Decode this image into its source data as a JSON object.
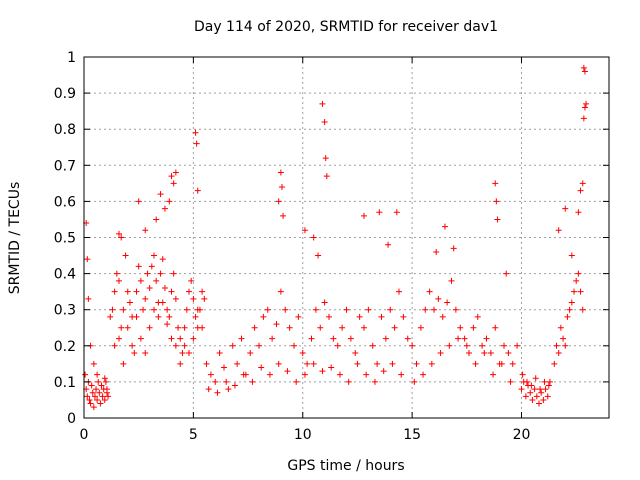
{
  "chart_data": {
    "type": "scatter",
    "title": "Day 114 of 2020, SRMTID for receiver dav1",
    "xlabel": "GPS time / hours",
    "ylabel": "SRMTID / TECUs",
    "xlim": [
      0,
      24
    ],
    "ylim": [
      0,
      1
    ],
    "xticks": [
      0,
      5,
      10,
      15,
      20
    ],
    "xtick_labels": [
      "0",
      "5",
      "10",
      "15",
      "20"
    ],
    "yticks": [
      0,
      0.1,
      0.2,
      0.3,
      0.4,
      0.5,
      0.6,
      0.7,
      0.8,
      0.9,
      1
    ],
    "ytick_labels": [
      "0",
      "0.1",
      "0.2",
      "0.3",
      "0.4",
      "0.5",
      "0.6",
      "0.7",
      "0.8",
      "0.9",
      "1"
    ],
    "grid": true,
    "marker": "+",
    "color": "#ff0000",
    "series": [
      {
        "name": "SRMTID",
        "x": [
          0.05,
          0.1,
          0.15,
          0.2,
          0.25,
          0.3,
          0.35,
          0.4,
          0.45,
          0.5,
          0.55,
          0.6,
          0.65,
          0.7,
          0.75,
          0.8,
          0.85,
          0.9,
          0.95,
          1.0,
          1.05,
          1.1,
          0.1,
          0.15,
          0.2,
          0.3,
          0.45,
          0.6,
          0.8,
          0.95,
          1.05,
          1.2,
          1.3,
          1.4,
          1.5,
          1.6,
          1.7,
          1.8,
          1.9,
          2.0,
          2.1,
          2.2,
          2.3,
          2.4,
          2.5,
          2.6,
          2.7,
          2.8,
          2.9,
          3.0,
          3.1,
          3.2,
          3.3,
          3.4,
          3.5,
          3.6,
          3.7,
          3.8,
          3.9,
          4.0,
          4.1,
          4.2,
          4.3,
          4.4,
          4.5,
          4.6,
          4.7,
          4.8,
          4.9,
          5.0,
          5.1,
          5.2,
          5.3,
          5.4,
          5.5,
          1.4,
          1.6,
          1.8,
          2.0,
          2.2,
          2.4,
          2.6,
          2.8,
          3.0,
          3.2,
          3.4,
          3.6,
          3.8,
          4.0,
          4.2,
          4.4,
          4.6,
          4.8,
          5.0,
          5.2,
          5.4,
          1.6,
          1.7,
          2.5,
          2.8,
          3.3,
          3.5,
          3.7,
          3.9,
          4.0,
          4.1,
          4.2,
          5.1,
          5.15,
          5.2,
          5.6,
          5.8,
          6.0,
          6.2,
          6.4,
          6.6,
          6.8,
          7.0,
          7.2,
          7.4,
          7.6,
          7.8,
          8.0,
          8.2,
          8.4,
          8.6,
          8.8,
          9.0,
          9.2,
          9.4,
          9.6,
          9.8,
          10.0,
          10.2,
          10.4,
          10.6,
          10.8,
          11.0,
          11.2,
          11.4,
          11.6,
          11.8,
          12.0,
          12.2,
          12.4,
          12.6,
          12.8,
          13.0,
          13.2,
          13.4,
          13.6,
          13.8,
          14.0,
          14.2,
          14.4,
          14.6,
          14.8,
          5.7,
          6.1,
          6.5,
          6.9,
          7.3,
          7.7,
          8.1,
          8.5,
          8.9,
          9.3,
          9.7,
          10.1,
          10.5,
          10.9,
          11.3,
          11.7,
          12.1,
          12.5,
          12.9,
          13.3,
          13.7,
          14.1,
          14.5,
          8.9,
          9.0,
          9.05,
          9.1,
          10.9,
          11.0,
          11.05,
          11.1,
          10.1,
          10.5,
          10.7,
          12.8,
          13.5,
          14.3,
          13.9,
          15.0,
          15.2,
          15.4,
          15.6,
          15.8,
          16.0,
          16.2,
          16.4,
          16.6,
          16.8,
          17.0,
          17.2,
          17.4,
          17.6,
          17.8,
          18.0,
          18.2,
          18.4,
          18.6,
          18.8,
          19.0,
          19.2,
          19.4,
          19.6,
          19.8,
          15.1,
          15.5,
          15.9,
          16.3,
          16.7,
          17.1,
          17.5,
          17.9,
          18.3,
          18.7,
          19.1,
          19.5,
          16.1,
          16.5,
          16.9,
          18.8,
          18.85,
          18.9,
          19.3,
          20.0,
          20.1,
          20.2,
          20.3,
          20.4,
          20.5,
          20.6,
          20.7,
          20.8,
          20.9,
          21.0,
          21.1,
          21.2,
          21.3,
          20.05,
          20.25,
          20.45,
          20.65,
          20.85,
          21.05,
          21.25,
          21.5,
          21.6,
          21.7,
          21.8,
          21.9,
          22.0,
          22.1,
          22.2,
          22.3,
          22.4,
          22.5,
          22.6,
          22.7,
          22.8,
          21.7,
          22.0,
          22.3,
          22.6,
          22.7,
          22.8,
          22.85,
          22.9,
          22.95,
          22.9,
          22.85
        ],
        "y": [
          0.12,
          0.08,
          0.06,
          0.1,
          0.05,
          0.04,
          0.09,
          0.07,
          0.03,
          0.06,
          0.08,
          0.05,
          0.1,
          0.07,
          0.04,
          0.09,
          0.06,
          0.08,
          0.05,
          0.1,
          0.07,
          0.06,
          0.54,
          0.44,
          0.33,
          0.2,
          0.15,
          0.12,
          0.09,
          0.11,
          0.08,
          0.28,
          0.3,
          0.35,
          0.4,
          0.38,
          0.25,
          0.3,
          0.45,
          0.35,
          0.32,
          0.28,
          0.18,
          0.35,
          0.42,
          0.38,
          0.3,
          0.33,
          0.4,
          0.36,
          0.42,
          0.45,
          0.38,
          0.32,
          0.4,
          0.44,
          0.36,
          0.3,
          0.28,
          0.35,
          0.4,
          0.33,
          0.25,
          0.22,
          0.18,
          0.2,
          0.3,
          0.35,
          0.38,
          0.33,
          0.28,
          0.25,
          0.3,
          0.35,
          0.33,
          0.2,
          0.22,
          0.15,
          0.25,
          0.2,
          0.28,
          0.22,
          0.18,
          0.25,
          0.3,
          0.28,
          0.32,
          0.26,
          0.22,
          0.2,
          0.15,
          0.25,
          0.18,
          0.22,
          0.3,
          0.25,
          0.51,
          0.5,
          0.6,
          0.52,
          0.55,
          0.62,
          0.58,
          0.6,
          0.67,
          0.65,
          0.68,
          0.79,
          0.76,
          0.63,
          0.15,
          0.12,
          0.1,
          0.18,
          0.14,
          0.08,
          0.2,
          0.15,
          0.22,
          0.12,
          0.18,
          0.25,
          0.2,
          0.28,
          0.3,
          0.22,
          0.26,
          0.35,
          0.3,
          0.25,
          0.2,
          0.28,
          0.18,
          0.15,
          0.22,
          0.3,
          0.25,
          0.32,
          0.28,
          0.22,
          0.2,
          0.25,
          0.3,
          0.22,
          0.18,
          0.28,
          0.25,
          0.3,
          0.2,
          0.15,
          0.28,
          0.22,
          0.3,
          0.25,
          0.35,
          0.28,
          0.22,
          0.08,
          0.07,
          0.1,
          0.09,
          0.12,
          0.1,
          0.14,
          0.12,
          0.15,
          0.13,
          0.1,
          0.12,
          0.15,
          0.13,
          0.14,
          0.12,
          0.1,
          0.15,
          0.12,
          0.1,
          0.13,
          0.15,
          0.12,
          0.6,
          0.68,
          0.64,
          0.56,
          0.87,
          0.82,
          0.72,
          0.67,
          0.52,
          0.5,
          0.45,
          0.56,
          0.57,
          0.57,
          0.48,
          0.2,
          0.15,
          0.25,
          0.3,
          0.35,
          0.3,
          0.33,
          0.28,
          0.32,
          0.38,
          0.3,
          0.25,
          0.22,
          0.18,
          0.25,
          0.28,
          0.2,
          0.22,
          0.18,
          0.25,
          0.15,
          0.2,
          0.18,
          0.15,
          0.2,
          0.1,
          0.12,
          0.15,
          0.18,
          0.2,
          0.22,
          0.2,
          0.15,
          0.18,
          0.12,
          0.15,
          0.1,
          0.46,
          0.53,
          0.47,
          0.65,
          0.6,
          0.55,
          0.4,
          0.08,
          0.1,
          0.06,
          0.09,
          0.07,
          0.05,
          0.08,
          0.06,
          0.04,
          0.07,
          0.05,
          0.08,
          0.06,
          0.1,
          0.12,
          0.1,
          0.09,
          0.11,
          0.08,
          0.1,
          0.09,
          0.15,
          0.2,
          0.18,
          0.25,
          0.22,
          0.2,
          0.28,
          0.3,
          0.32,
          0.35,
          0.38,
          0.4,
          0.35,
          0.3,
          0.52,
          0.58,
          0.45,
          0.57,
          0.63,
          0.65,
          0.97,
          0.96,
          0.87,
          0.86,
          0.83
        ]
      }
    ]
  }
}
